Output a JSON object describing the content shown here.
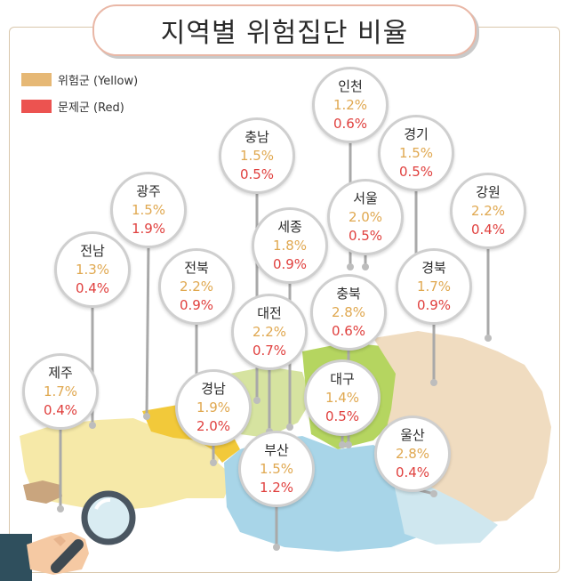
{
  "title": "지역별 위험집단 비율",
  "legend": [
    {
      "label": "위험군 (Yellow)",
      "color": "#e6b875"
    },
    {
      "label": "문제군 (Red)",
      "color": "#ec5350"
    }
  ],
  "colors": {
    "yellow_value": "#e0a850",
    "red_value": "#e0403e"
  },
  "regions": [
    {
      "name": "인천",
      "yellow": "1.2%",
      "red": "0.6%"
    },
    {
      "name": "충남",
      "yellow": "1.5%",
      "red": "0.5%"
    },
    {
      "name": "경기",
      "yellow": "1.5%",
      "red": "0.5%"
    },
    {
      "name": "광주",
      "yellow": "1.5%",
      "red": "1.9%"
    },
    {
      "name": "서울",
      "yellow": "2.0%",
      "red": "0.5%"
    },
    {
      "name": "강원",
      "yellow": "2.2%",
      "red": "0.4%"
    },
    {
      "name": "세종",
      "yellow": "1.8%",
      "red": "0.9%"
    },
    {
      "name": "전남",
      "yellow": "1.3%",
      "red": "0.4%"
    },
    {
      "name": "전북",
      "yellow": "2.2%",
      "red": "0.9%"
    },
    {
      "name": "경북",
      "yellow": "1.7%",
      "red": "0.9%"
    },
    {
      "name": "충북",
      "yellow": "2.8%",
      "red": "0.6%"
    },
    {
      "name": "대전",
      "yellow": "2.2%",
      "red": "0.7%"
    },
    {
      "name": "제주",
      "yellow": "1.7%",
      "red": "0.4%"
    },
    {
      "name": "경남",
      "yellow": "1.9%",
      "red": "2.0%"
    },
    {
      "name": "대구",
      "yellow": "1.4%",
      "red": "0.5%"
    },
    {
      "name": "울산",
      "yellow": "2.8%",
      "red": "0.4%"
    },
    {
      "name": "부산",
      "yellow": "1.5%",
      "red": "1.2%"
    }
  ],
  "icons": {
    "magnifier": "magnifying-glass-icon",
    "hand": "hand-icon"
  }
}
